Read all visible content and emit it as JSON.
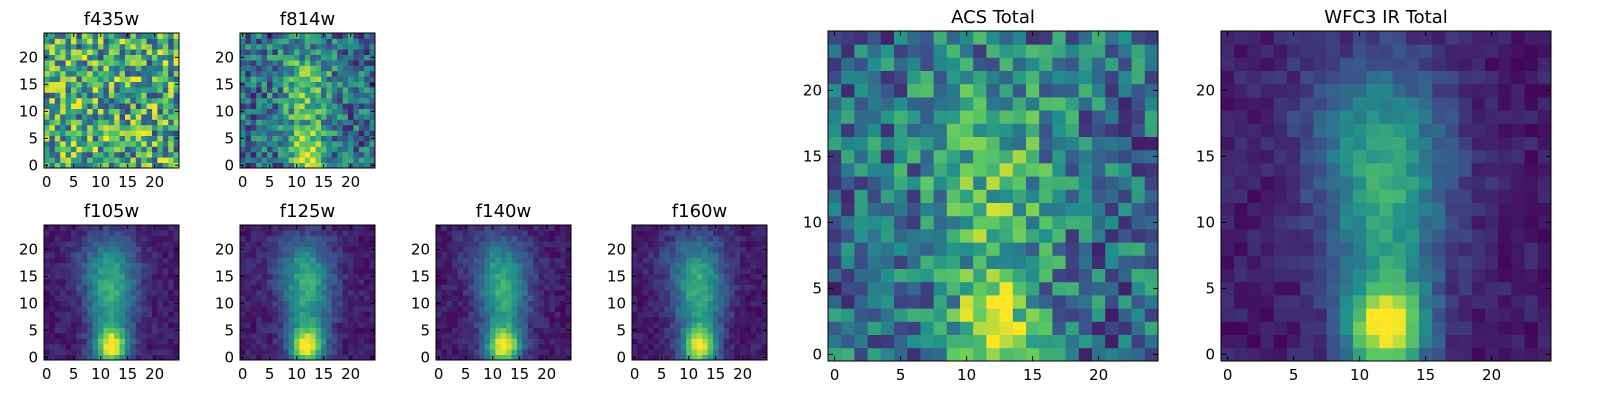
{
  "colormap": [
    "#440154",
    "#3b528b",
    "#21918c",
    "#5ec962",
    "#fde725"
  ],
  "chart_data": [
    {
      "type": "heatmap",
      "title": "f435w",
      "grid": [
        25,
        25
      ],
      "xticks": [
        0,
        5,
        10,
        15,
        20
      ],
      "yticks": [
        0,
        5,
        10,
        15,
        20
      ],
      "pattern": "noise"
    },
    {
      "type": "heatmap",
      "title": "f814w",
      "grid": [
        25,
        25
      ],
      "xticks": [
        0,
        5,
        10,
        15,
        20
      ],
      "yticks": [
        0,
        5,
        10,
        15,
        20
      ],
      "pattern": "noisy-source"
    },
    {
      "type": "heatmap",
      "title": "f105w",
      "grid": [
        25,
        25
      ],
      "xticks": [
        0,
        5,
        10,
        15,
        20
      ],
      "yticks": [
        0,
        5,
        10,
        15,
        20
      ],
      "pattern": "source"
    },
    {
      "type": "heatmap",
      "title": "f125w",
      "grid": [
        25,
        25
      ],
      "xticks": [
        0,
        5,
        10,
        15,
        20
      ],
      "yticks": [
        0,
        5,
        10,
        15,
        20
      ],
      "pattern": "source"
    },
    {
      "type": "heatmap",
      "title": "f140w",
      "grid": [
        25,
        25
      ],
      "xticks": [
        0,
        5,
        10,
        15,
        20
      ],
      "yticks": [
        0,
        5,
        10,
        15,
        20
      ],
      "pattern": "source"
    },
    {
      "type": "heatmap",
      "title": "f160w",
      "grid": [
        25,
        25
      ],
      "xticks": [
        0,
        5,
        10,
        15,
        20
      ],
      "yticks": [
        0,
        5,
        10,
        15,
        20
      ],
      "pattern": "source"
    },
    {
      "type": "heatmap",
      "title": "ACS Total",
      "grid": [
        25,
        25
      ],
      "xticks": [
        0,
        5,
        10,
        15,
        20
      ],
      "yticks": [
        0,
        5,
        10,
        15,
        20
      ],
      "pattern": "noisy-source"
    },
    {
      "type": "heatmap",
      "title": "WFC3 IR Total",
      "grid": [
        25,
        25
      ],
      "xticks": [
        0,
        5,
        10,
        15,
        20
      ],
      "yticks": [
        0,
        5,
        10,
        15,
        20
      ],
      "pattern": "source"
    }
  ]
}
